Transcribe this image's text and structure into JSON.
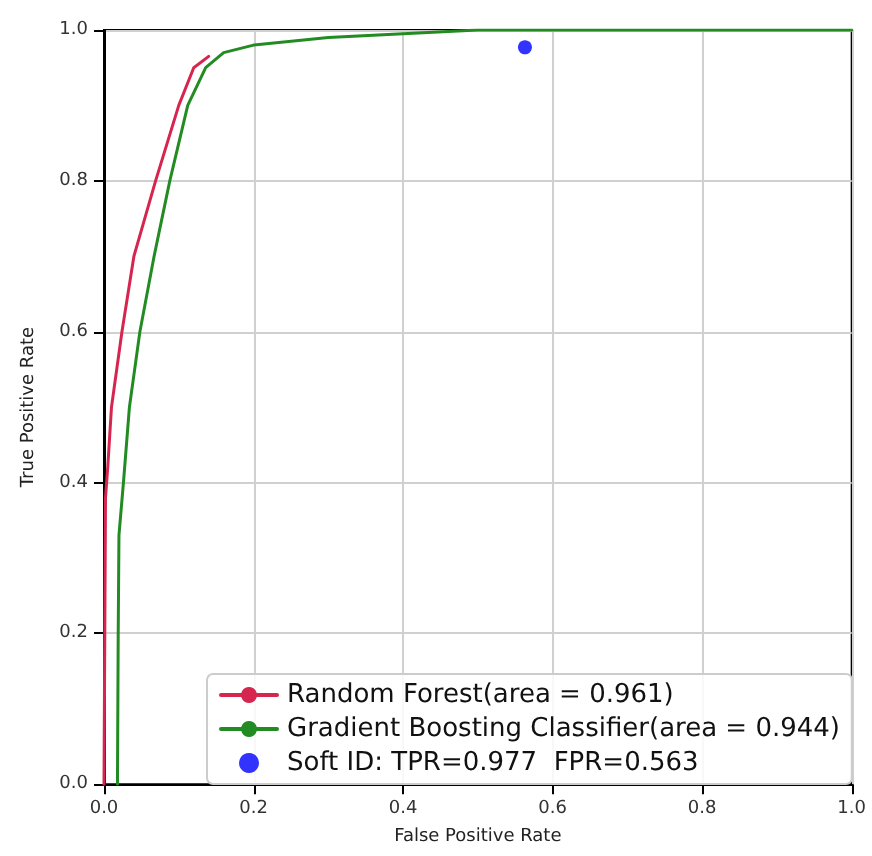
{
  "chart_data": {
    "type": "line",
    "xlabel": "False Positive Rate",
    "ylabel": "True Positive Rate",
    "xlim": [
      0,
      1
    ],
    "ylim": [
      0,
      1
    ],
    "xticks": [
      {
        "value": 0,
        "label": "0.0"
      },
      0.2,
      0.4,
      0.6,
      0.8,
      {
        "value": 1,
        "label": "1.0"
      }
    ],
    "yticks": [
      {
        "value": 0,
        "label": "0.0"
      },
      0.2,
      0.4,
      0.6,
      0.8,
      {
        "value": 1,
        "label": "1.0"
      }
    ],
    "grid": true,
    "legend": "bottom right",
    "marker": "none",
    "series": [
      {
        "name": "Random Forest(area = 0.961)",
        "color": "#d6264f",
        "x": [
          0,
          0.002,
          0.005,
          0.01,
          0.024,
          0.04,
          0.069,
          0.1,
          0.12,
          0.14
        ],
        "values": [
          0,
          0.38,
          0.42,
          0.5,
          0.6,
          0.7,
          0.8,
          0.9,
          0.95,
          0.965
        ]
      },
      {
        "name": "Gradient Boosting Classifier(area = 0.944)",
        "color": "#228b22",
        "x": [
          0.018,
          0.019,
          0.02,
          0.026,
          0.034,
          0.048,
          0.067,
          0.088,
          0.112,
          0.136,
          0.16,
          0.2,
          0.3,
          0.5,
          1
        ],
        "values": [
          0,
          0.2,
          0.33,
          0.4,
          0.5,
          0.6,
          0.7,
          0.8,
          0.9,
          0.95,
          0.97,
          0.98,
          0.99,
          1,
          1
        ]
      },
      {
        "name": "Soft ID: TPR=0.977  FPR=0.563",
        "type": "scatter",
        "marker": "circle",
        "color": "#0000ff",
        "x": [
          0.563
        ],
        "values": [
          0.977
        ]
      }
    ]
  }
}
